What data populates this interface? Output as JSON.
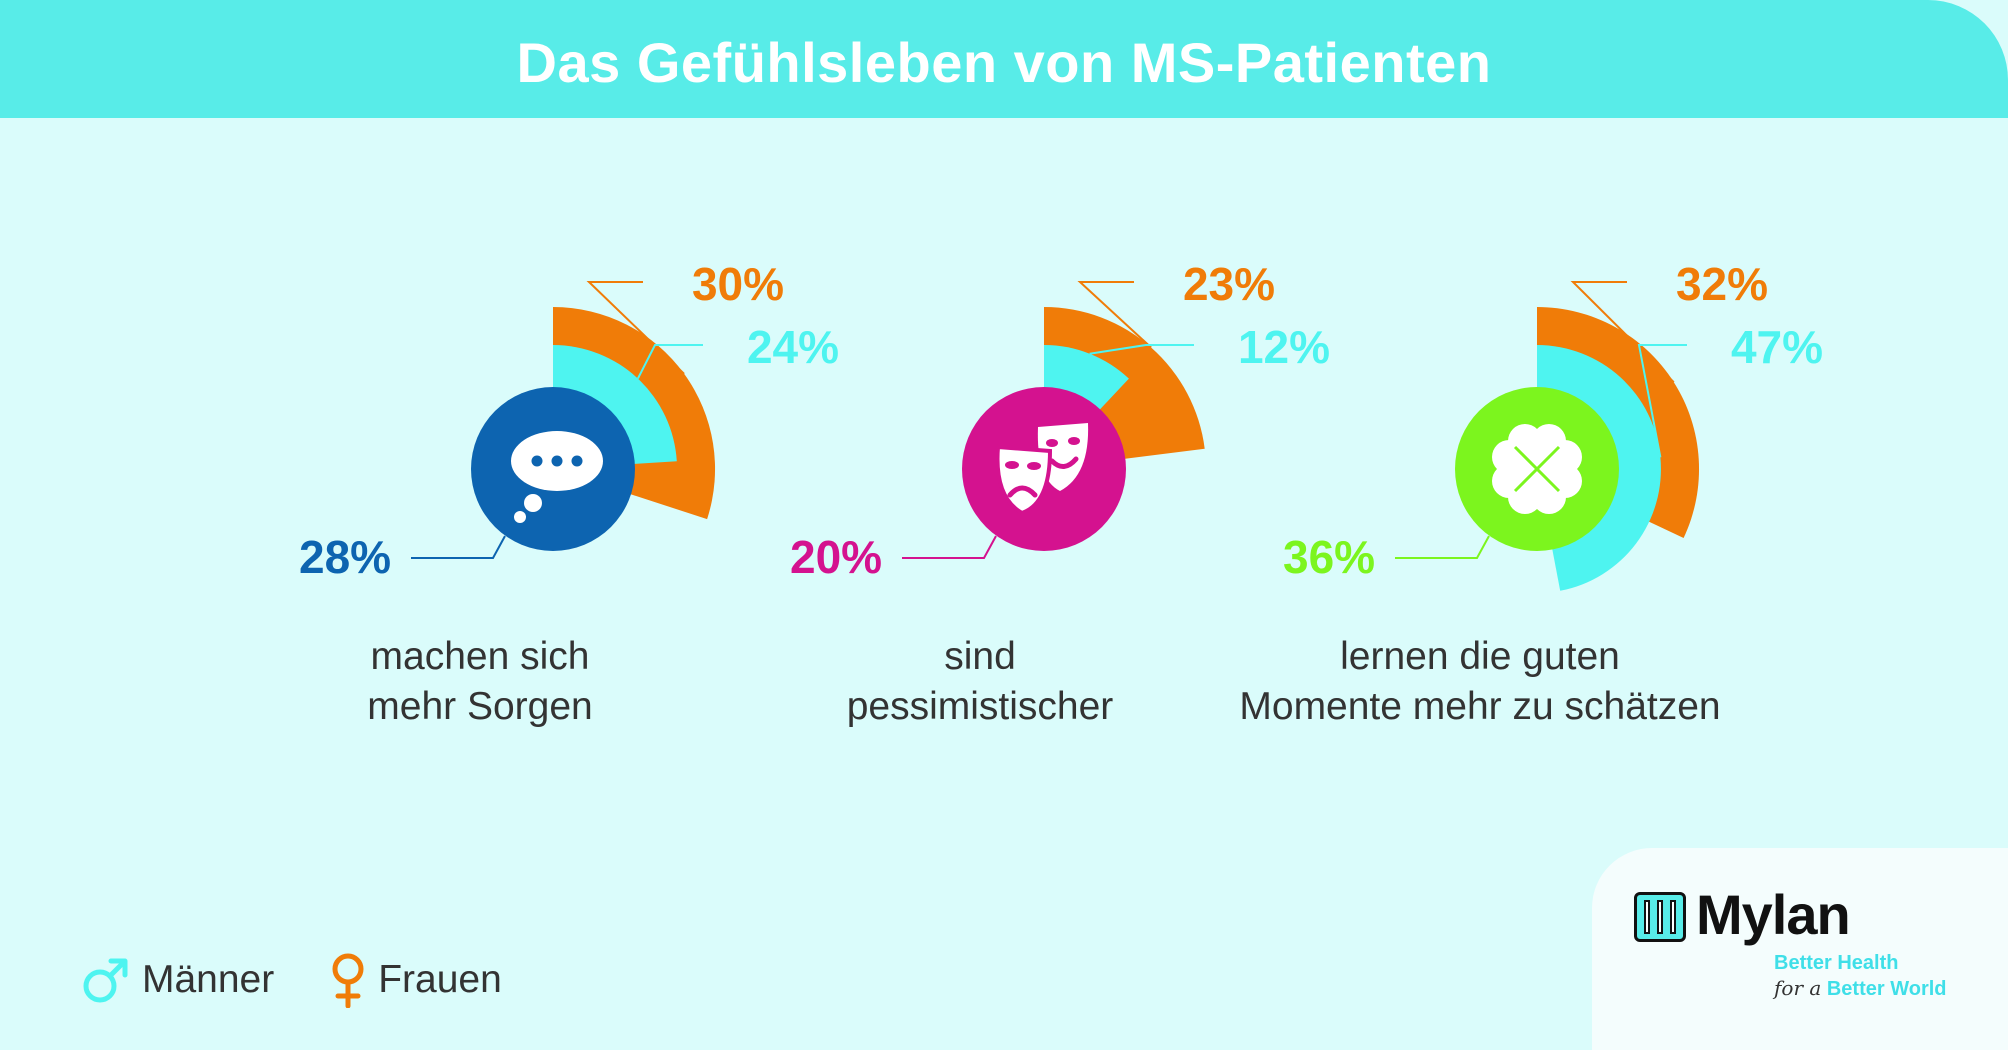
{
  "title": "Das Gefühlsleben von MS-Patienten",
  "colors": {
    "header": "#58ece8",
    "background": "#dafcfb",
    "maenner": "#4ef4f0",
    "frauen": "#f07c08",
    "panel1": "#0d64b0",
    "panel2": "#d4128f",
    "panel3": "#7cf51e"
  },
  "chart_data": [
    {
      "type": "pie",
      "icon": "thought-bubble-icon",
      "overall_label": "28%",
      "overall": 28,
      "series": [
        {
          "name": "Männer",
          "label": "24%",
          "value": 24
        },
        {
          "name": "Frauen",
          "label": "30%",
          "value": 30
        }
      ],
      "caption": [
        "machen sich",
        "mehr Sorgen"
      ]
    },
    {
      "type": "pie",
      "icon": "theater-masks-icon",
      "overall_label": "20%",
      "overall": 20,
      "series": [
        {
          "name": "Männer",
          "label": "12%",
          "value": 12
        },
        {
          "name": "Frauen",
          "label": "23%",
          "value": 23
        }
      ],
      "caption": [
        "sind",
        "pessimistischer"
      ]
    },
    {
      "type": "pie",
      "icon": "clover-icon",
      "overall_label": "36%",
      "overall": 36,
      "series": [
        {
          "name": "Männer",
          "label": "47%",
          "value": 47
        },
        {
          "name": "Frauen",
          "label": "32%",
          "value": 32
        }
      ],
      "caption": [
        "lernen die guten",
        "Momente mehr zu schätzen"
      ]
    }
  ],
  "legend": [
    {
      "label": "Männer",
      "icon": "male-symbol-icon"
    },
    {
      "label": "Frauen",
      "icon": "female-symbol-icon"
    }
  ],
  "logo": {
    "name": "Mylan",
    "tagline_line1": "Better Health",
    "tagline_prefix": "for a",
    "tagline_line2": "Better World"
  }
}
